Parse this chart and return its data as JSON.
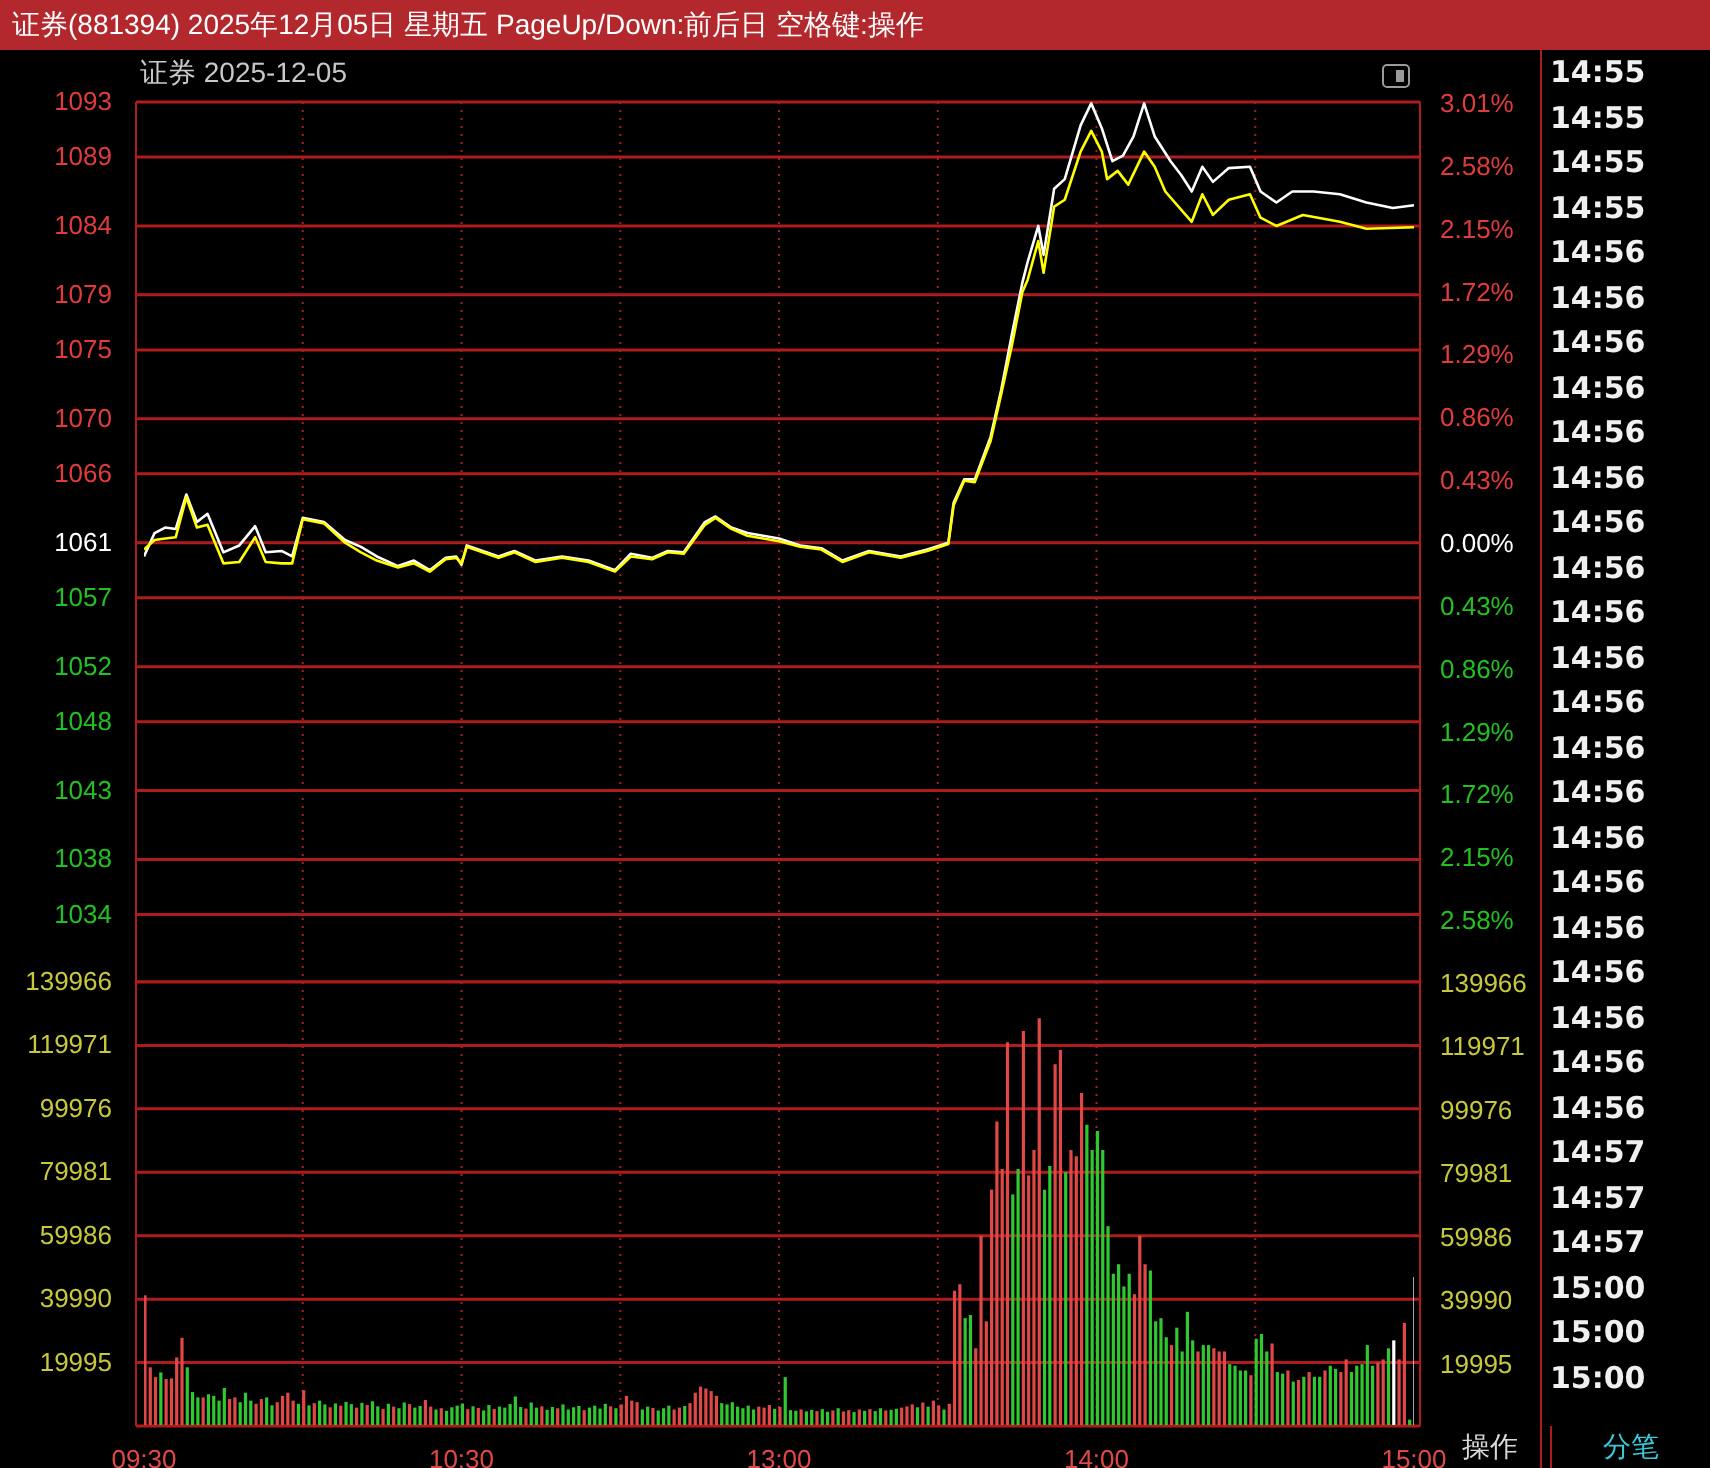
{
  "chart_data": [
    {
      "type": "line",
      "title": "证券(881394) 2025年12月05日 星期五 PageUp/Down:前后日 空格键:操作",
      "subtitle": "证券 2025-12-05",
      "ylim": [
        1029.1,
        1093
      ],
      "yticks": [
        1093,
        1089,
        1084,
        1079,
        1075,
        1070,
        1066,
        1061,
        1057,
        1052,
        1048,
        1043,
        1038,
        1034
      ],
      "y2lim": [
        -3.01,
        3.01
      ],
      "y2ticks": [
        {
          "value": 3.01,
          "label": "3.01%"
        },
        {
          "value": 2.58,
          "label": "2.58%"
        },
        {
          "value": 2.15,
          "label": "2.15%"
        },
        {
          "value": 1.72,
          "label": "1.72%"
        },
        {
          "value": 1.29,
          "label": "1.29%"
        },
        {
          "value": 0.86,
          "label": "0.86%"
        },
        {
          "value": 0.43,
          "label": "0.43%"
        },
        {
          "value": 0,
          "label": "0.00%"
        },
        {
          "value": -0.43,
          "label": "0.43%"
        },
        {
          "value": -0.86,
          "label": "0.86%"
        },
        {
          "value": -1.29,
          "label": "1.29%"
        },
        {
          "value": -1.72,
          "label": "1.72%"
        },
        {
          "value": -2.15,
          "label": "2.15%"
        },
        {
          "value": -2.58,
          "label": "2.58%"
        }
      ],
      "grid": true,
      "tick_labels": "y",
      "series": [
        {
          "color": "#ffffff",
          "values": [
            1060.0,
            null,
            1061.7,
            null,
            1062.1,
            null,
            1062.0,
            null,
            1064.5,
            null,
            1062.5,
            null,
            1063.1,
            null,
            null,
            1060.3,
            null,
            null,
            1060.8,
            null,
            null,
            1062.2,
            null,
            1060.3,
            null,
            null,
            1060.4,
            null,
            1060.0,
            null,
            1062.8,
            null,
            null,
            null,
            1062.5,
            null,
            null,
            null,
            1061.2,
            null,
            null,
            1060.7,
            null,
            null,
            1060.0,
            null,
            null,
            null,
            1059.3,
            null,
            null,
            1059.7,
            null,
            null,
            1059.0,
            null,
            null,
            1059.9,
            null,
            1060.0,
            1059.4,
            1060.8,
            null,
            null,
            1060.4,
            null,
            null,
            1060.0,
            null,
            null,
            1060.4,
            null,
            null,
            null,
            1059.7,
            null,
            null,
            null,
            null,
            1060.0,
            null,
            null,
            null,
            null,
            1059.7,
            null,
            null,
            null,
            null,
            1059.0,
            null,
            null,
            1060.2,
            null,
            null,
            null,
            1059.9,
            null,
            null,
            1060.4,
            null,
            null,
            1060.3,
            null,
            null,
            null,
            1062.5,
            null,
            1062.9,
            null,
            null,
            1062.1,
            null,
            null,
            1061.7,
            null,
            null,
            1061.5,
            null,
            null,
            1061.3,
            null,
            null,
            null,
            1060.8,
            null,
            null,
            null,
            1060.6,
            null,
            null,
            null,
            1059.7,
            null,
            null,
            null,
            null,
            1060.4,
            null,
            null,
            null,
            null,
            null,
            1060.0,
            null,
            null,
            null,
            null,
            1060.5,
            null,
            null,
            null,
            1061.0,
            1063.9,
            null,
            1065.6,
            null,
            1065.6,
            null,
            null,
            1068.7,
            null,
            1072.1,
            null,
            1076.1,
            null,
            1079.9,
            1081.4,
            null,
            1084.0,
            1081.9,
            null,
            1086.7,
            null,
            1087.4,
            null,
            null,
            1091.3,
            null,
            1092.9,
            null,
            1091.1,
            null,
            1088.7,
            null,
            1089.1,
            null,
            1090.5,
            null,
            1092.9,
            null,
            1090.5,
            null,
            null,
            1088.7,
            null,
            1087.7,
            null,
            1086.5,
            null,
            1088.3,
            null,
            1087.2,
            null,
            null,
            1088.2,
            null,
            null,
            null,
            1088.3,
            null,
            1086.5,
            null,
            null,
            1085.7,
            null,
            null,
            1086.5,
            null,
            null,
            null,
            1086.5,
            null,
            null,
            null,
            null,
            1086.3,
            null,
            null,
            null,
            null,
            1085.7,
            null,
            null,
            null,
            null,
            1085.3,
            null,
            null,
            null,
            1085.5
          ]
        },
        {
          "color": "#ffff00",
          "values": [
            1060.5,
            null,
            1061.2,
            null,
            1061.3,
            null,
            1061.4,
            null,
            1064.3,
            null,
            1062.1,
            null,
            1062.3,
            null,
            null,
            1059.5,
            null,
            null,
            1059.6,
            null,
            null,
            1061.4,
            null,
            1059.6,
            null,
            null,
            1059.5,
            null,
            1059.5,
            null,
            1062.7,
            null,
            null,
            null,
            1062.4,
            null,
            null,
            null,
            1061.0,
            null,
            null,
            1060.3,
            null,
            null,
            1059.7,
            null,
            null,
            null,
            1059.2,
            null,
            null,
            1059.5,
            null,
            null,
            1058.9,
            null,
            null,
            1059.8,
            null,
            1059.9,
            1059.5,
            1060.7,
            null,
            null,
            1060.3,
            null,
            null,
            1059.9,
            null,
            null,
            1060.3,
            null,
            null,
            null,
            1059.6,
            null,
            null,
            null,
            null,
            1059.9,
            null,
            null,
            null,
            null,
            1059.6,
            null,
            null,
            null,
            null,
            1058.9,
            null,
            null,
            1060.0,
            null,
            null,
            null,
            1059.8,
            null,
            null,
            1060.3,
            null,
            null,
            1060.2,
            null,
            null,
            null,
            1062.3,
            null,
            1062.8,
            null,
            null,
            1062.0,
            null,
            null,
            1061.5,
            null,
            null,
            1061.3,
            null,
            null,
            1061.1,
            null,
            null,
            null,
            1060.7,
            null,
            null,
            null,
            1060.5,
            null,
            null,
            null,
            1059.6,
            null,
            null,
            null,
            null,
            1060.3,
            null,
            null,
            null,
            null,
            null,
            1059.9,
            null,
            null,
            null,
            null,
            1060.4,
            null,
            null,
            null,
            1060.9,
            1063.7,
            null,
            1065.5,
            null,
            1065.4,
            null,
            null,
            1068.4,
            null,
            1071.8,
            null,
            1075.3,
            null,
            1079.2,
            1080.1,
            null,
            1082.9,
            1080.6,
            null,
            1085.4,
            null,
            1085.9,
            null,
            null,
            1089.4,
            null,
            1090.9,
            null,
            1089.4,
            1087.4,
            null,
            1088.0,
            null,
            1087.0,
            null,
            null,
            1089.4,
            null,
            1088.3,
            null,
            1086.5,
            null,
            null,
            null,
            null,
            1084.3,
            null,
            1086.3,
            null,
            1084.8,
            null,
            null,
            1085.9,
            null,
            null,
            null,
            1086.3,
            null,
            1084.6,
            null,
            null,
            1084.0,
            null,
            null,
            null,
            null,
            1084.8,
            null,
            null,
            null,
            null,
            null,
            null,
            1084.3,
            null,
            null,
            null,
            null,
            1083.8,
            null,
            null,
            null,
            null,
            null,
            null,
            null,
            null,
            1083.9
          ]
        }
      ]
    },
    {
      "type": "bar",
      "categories": [
        "09:30",
        null,
        null,
        null,
        null,
        null,
        null,
        null,
        null,
        null,
        null,
        null,
        null,
        null,
        null,
        null,
        null,
        null,
        null,
        null,
        null,
        null,
        null,
        null,
        null,
        null,
        null,
        null,
        null,
        null,
        null,
        null,
        null,
        null,
        null,
        null,
        null,
        null,
        null,
        null,
        null,
        null,
        null,
        null,
        null,
        null,
        null,
        null,
        null,
        null,
        null,
        null,
        null,
        null,
        null,
        null,
        null,
        null,
        null,
        null,
        "10:30",
        null,
        null,
        null,
        null,
        null,
        null,
        null,
        null,
        null,
        null,
        null,
        null,
        null,
        null,
        null,
        null,
        null,
        null,
        null,
        null,
        null,
        null,
        null,
        null,
        null,
        null,
        null,
        null,
        null,
        null,
        null,
        null,
        null,
        null,
        null,
        null,
        null,
        null,
        null,
        null,
        null,
        null,
        null,
        null,
        null,
        null,
        null,
        null,
        null,
        null,
        null,
        null,
        null,
        null,
        null,
        null,
        null,
        null,
        null,
        "13:00",
        null,
        null,
        null,
        null,
        null,
        null,
        null,
        null,
        null,
        null,
        null,
        null,
        null,
        null,
        null,
        null,
        null,
        null,
        null,
        null,
        null,
        null,
        null,
        null,
        null,
        null,
        null,
        null,
        null,
        null,
        null,
        null,
        null,
        null,
        null,
        null,
        null,
        null,
        null,
        null,
        null,
        null,
        null,
        null,
        null,
        null,
        null,
        null,
        null,
        null,
        null,
        null,
        null,
        null,
        null,
        null,
        null,
        null,
        null,
        "14:00",
        null,
        null,
        null,
        null,
        null,
        null,
        null,
        null,
        null,
        null,
        null,
        null,
        null,
        null,
        null,
        null,
        null,
        null,
        null,
        null,
        null,
        null,
        null,
        null,
        null,
        null,
        null,
        null,
        null,
        null,
        null,
        null,
        null,
        null,
        null,
        null,
        null,
        null,
        null,
        null,
        null,
        null,
        null,
        null,
        null,
        null,
        null,
        null,
        null,
        null,
        null,
        null,
        null,
        null,
        null,
        null,
        null,
        null,
        null,
        "15:00"
      ],
      "ylim": [
        0,
        139966
      ],
      "yticks": [
        19995,
        39990,
        59986,
        79981,
        99976,
        119971,
        139966
      ],
      "y2lim": [
        0,
        139966
      ],
      "y2ticks": [
        19995,
        39990,
        59986,
        79981,
        99976,
        119971,
        139966
      ],
      "grid": true,
      "values": [
        41200,
        18500,
        15400,
        16900,
        14800,
        15000,
        21600,
        27800,
        18500,
        10700,
        9000,
        9000,
        10000,
        9500,
        8000,
        12000,
        8500,
        9000,
        7500,
        10500,
        8000,
        7000,
        8500,
        9000,
        6500,
        7500,
        9500,
        10500,
        8000,
        7000,
        11300,
        6500,
        7200,
        8000,
        6800,
        5900,
        7100,
        6400,
        7600,
        6900,
        5800,
        7300,
        6600,
        7800,
        6200,
        5400,
        7000,
        6100,
        5600,
        7400,
        6900,
        5800,
        6300,
        8200,
        6100,
        5200,
        5600,
        4800,
        5900,
        6400,
        7100,
        5300,
        6200,
        5700,
        4900,
        6600,
        5400,
        6100,
        5800,
        6900,
        9300,
        6000,
        5500,
        7400,
        5800,
        6200,
        5100,
        6000,
        5600,
        6800,
        5200,
        5900,
        6300,
        5000,
        5800,
        6400,
        5500,
        7000,
        6200,
        5600,
        6800,
        9500,
        8000,
        7500,
        5200,
        6100,
        5700,
        4900,
        5600,
        6400,
        5200,
        5800,
        6300,
        7200,
        10500,
        12400,
        11800,
        11000,
        9500,
        7200,
        6800,
        7500,
        6100,
        5600,
        6400,
        5200,
        6100,
        5800,
        6600,
        5400,
        6000,
        15400,
        5000,
        4800,
        5200,
        4600,
        5100,
        4700,
        5300,
        4500,
        4900,
        5600,
        4600,
        5000,
        4400,
        5200,
        4800,
        5300,
        4700,
        5600,
        4900,
        5100,
        5400,
        5800,
        6200,
        6800,
        5900,
        7400,
        6100,
        8000,
        6500,
        5200,
        7000,
        42600,
        44700,
        34000,
        35000,
        24500,
        60000,
        33000,
        74500,
        96000,
        81000,
        121000,
        73000,
        81000,
        124500,
        79000,
        87000,
        128500,
        74500,
        82000,
        114000,
        118500,
        80000,
        87000,
        85000,
        105000,
        95000,
        87000,
        93000,
        87000,
        63000,
        48000,
        51000,
        44000,
        48000,
        41500,
        60000,
        51000,
        49000,
        33000,
        34000,
        28000,
        25500,
        31000,
        23500,
        36000,
        27000,
        23500,
        25500,
        25500,
        24500,
        23500,
        23500,
        19500,
        19000,
        17500,
        17500,
        16000,
        27500,
        29000,
        23500,
        26000,
        17000,
        16500,
        17500,
        14000,
        14500,
        15500,
        17000,
        15500,
        15500,
        17500,
        19000,
        18000,
        17000,
        21000,
        17000,
        19000,
        19500,
        25500,
        19000,
        20000,
        21000,
        24500,
        27000,
        21000,
        32500,
        2000,
        47000
      ],
      "colors": [
        "#e04848",
        "#e04848",
        "#e04848",
        "#30c830",
        "#e04848",
        "#e04848",
        "#e04848",
        "#e04848",
        "#30c830",
        "#30c830",
        "#30c830",
        "#e04848",
        "#30c830",
        "#30c830",
        "#30c830",
        "#30c830",
        "#e04848",
        "#e04848",
        "#30c830",
        "#30c830",
        "#30c830",
        "#e04848",
        "#e04848",
        "#30c830",
        "#30c830",
        "#e04848",
        "#e04848",
        "#e04848",
        "#e04848",
        "#30c830",
        "#e04848",
        "#30c830",
        "#e04848",
        "#30c830",
        "#30c830",
        "#e04848",
        "#30c830",
        "#e04848",
        "#30c830",
        "#30c830",
        "#e04848",
        "#30c830",
        "#e04848",
        "#30c830",
        "#30c830",
        "#e04848",
        "#30c830",
        "#e04848",
        "#30c830",
        "#30c830",
        "#e04848",
        "#30c830",
        "#30c830",
        "#e04848",
        "#e04848",
        "#30c830",
        "#e04848",
        "#30c830",
        "#30c830",
        "#30c830",
        "#30c830",
        "#e04848",
        "#30c830",
        "#e04848",
        "#30c830",
        "#30c830",
        "#e04848",
        "#30c830",
        "#30c830",
        "#30c830",
        "#30c830",
        "#30c830",
        "#e04848",
        "#30c830",
        "#30c830",
        "#e04848",
        "#30c830",
        "#30c830",
        "#e04848",
        "#30c830",
        "#30c830",
        "#30c830",
        "#30c830",
        "#e04848",
        "#30c830",
        "#30c830",
        "#30c830",
        "#30c830",
        "#e04848",
        "#30c830",
        "#e04848",
        "#e04848",
        "#e04848",
        "#e04848",
        "#30c830",
        "#30c830",
        "#e04848",
        "#30c830",
        "#30c830",
        "#30c830",
        "#e04848",
        "#e04848",
        "#30c830",
        "#e04848",
        "#e04848",
        "#e04848",
        "#e04848",
        "#e04848",
        "#e04848",
        "#30c830",
        "#30c830",
        "#30c830",
        "#30c830",
        "#30c830",
        "#30c830",
        "#30c830",
        "#e04848",
        "#e04848",
        "#e04848",
        "#30c830",
        "#e04848",
        "#30c830",
        "#30c830",
        "#30c830",
        "#e04848",
        "#30c830",
        "#30c830",
        "#e04848",
        "#30c830",
        "#30c830",
        "#e04848",
        "#30c830",
        "#e04848",
        "#e04848",
        "#30c830",
        "#e04848",
        "#30c830",
        "#e04848",
        "#30c830",
        "#30c830",
        "#e04848",
        "#30c830",
        "#30c830",
        "#e04848",
        "#e04848",
        "#e04848",
        "#30c830",
        "#e04848",
        "#30c830",
        "#e04848",
        "#e04848",
        "#30c830",
        "#e04848",
        "#e04848",
        "#e04848",
        "#30c830",
        "#30c830",
        "#e04848",
        "#e04848",
        "#e04848",
        "#e04848",
        "#e04848",
        "#e04848",
        "#e04848",
        "#30c830",
        "#30c830",
        "#e04848",
        "#e04848",
        "#e04848",
        "#e04848",
        "#30c830",
        "#30c830",
        "#e04848",
        "#e04848",
        "#30c830",
        "#e04848",
        "#e04848",
        "#e04848",
        "#30c830",
        "#30c830",
        "#30c830",
        "#30c830",
        "#30c830",
        "#30c830",
        "#30c830",
        "#30c830",
        "#30c830",
        "#e04848",
        "#e04848",
        "#e04848",
        "#30c830",
        "#30c830",
        "#30c830",
        "#30c830",
        "#e04848",
        "#30c830",
        "#30c830",
        "#30c830",
        "#30c830",
        "#e04848",
        "#30c830",
        "#30c830",
        "#e04848",
        "#e04848",
        "#e04848",
        "#30c830",
        "#30c830",
        "#30c830",
        "#30c830",
        "#e04848",
        "#30c830",
        "#30c830",
        "#30c830",
        "#e04848",
        "#30c830",
        "#30c830",
        "#e04848",
        "#30c830",
        "#e04848",
        "#30c830",
        "#e04848",
        "#30c830",
        "#30c830",
        "#e04848",
        "#30c830",
        "#30c830",
        "#e04848",
        "#e04848",
        "#30c830",
        "#30c830",
        "#30c830",
        "#30c830",
        "#30c830",
        "#e04848",
        "#e04848",
        "#30c830",
        "#ffffff",
        "#e04848",
        "#e04848",
        "#30c830",
        "#ffffff"
      ]
    },
    {
      "type": "other",
      "annotations": [
        "14:55",
        "14:55",
        "14:55",
        "14:55",
        "14:56",
        "14:56",
        "14:56",
        "14:56",
        "14:56",
        "14:56",
        "14:56",
        "14:56",
        "14:56",
        "14:56",
        "14:56",
        "14:56",
        "14:56",
        "14:56",
        "14:56",
        "14:56",
        "14:56",
        "14:56",
        "14:56",
        "14:56",
        "14:57",
        "14:57",
        "14:57",
        "15:00",
        "15:00",
        "15:00"
      ]
    },
    {
      "type": "other",
      "annotations": [
        "操作",
        "分笔"
      ]
    }
  ]
}
